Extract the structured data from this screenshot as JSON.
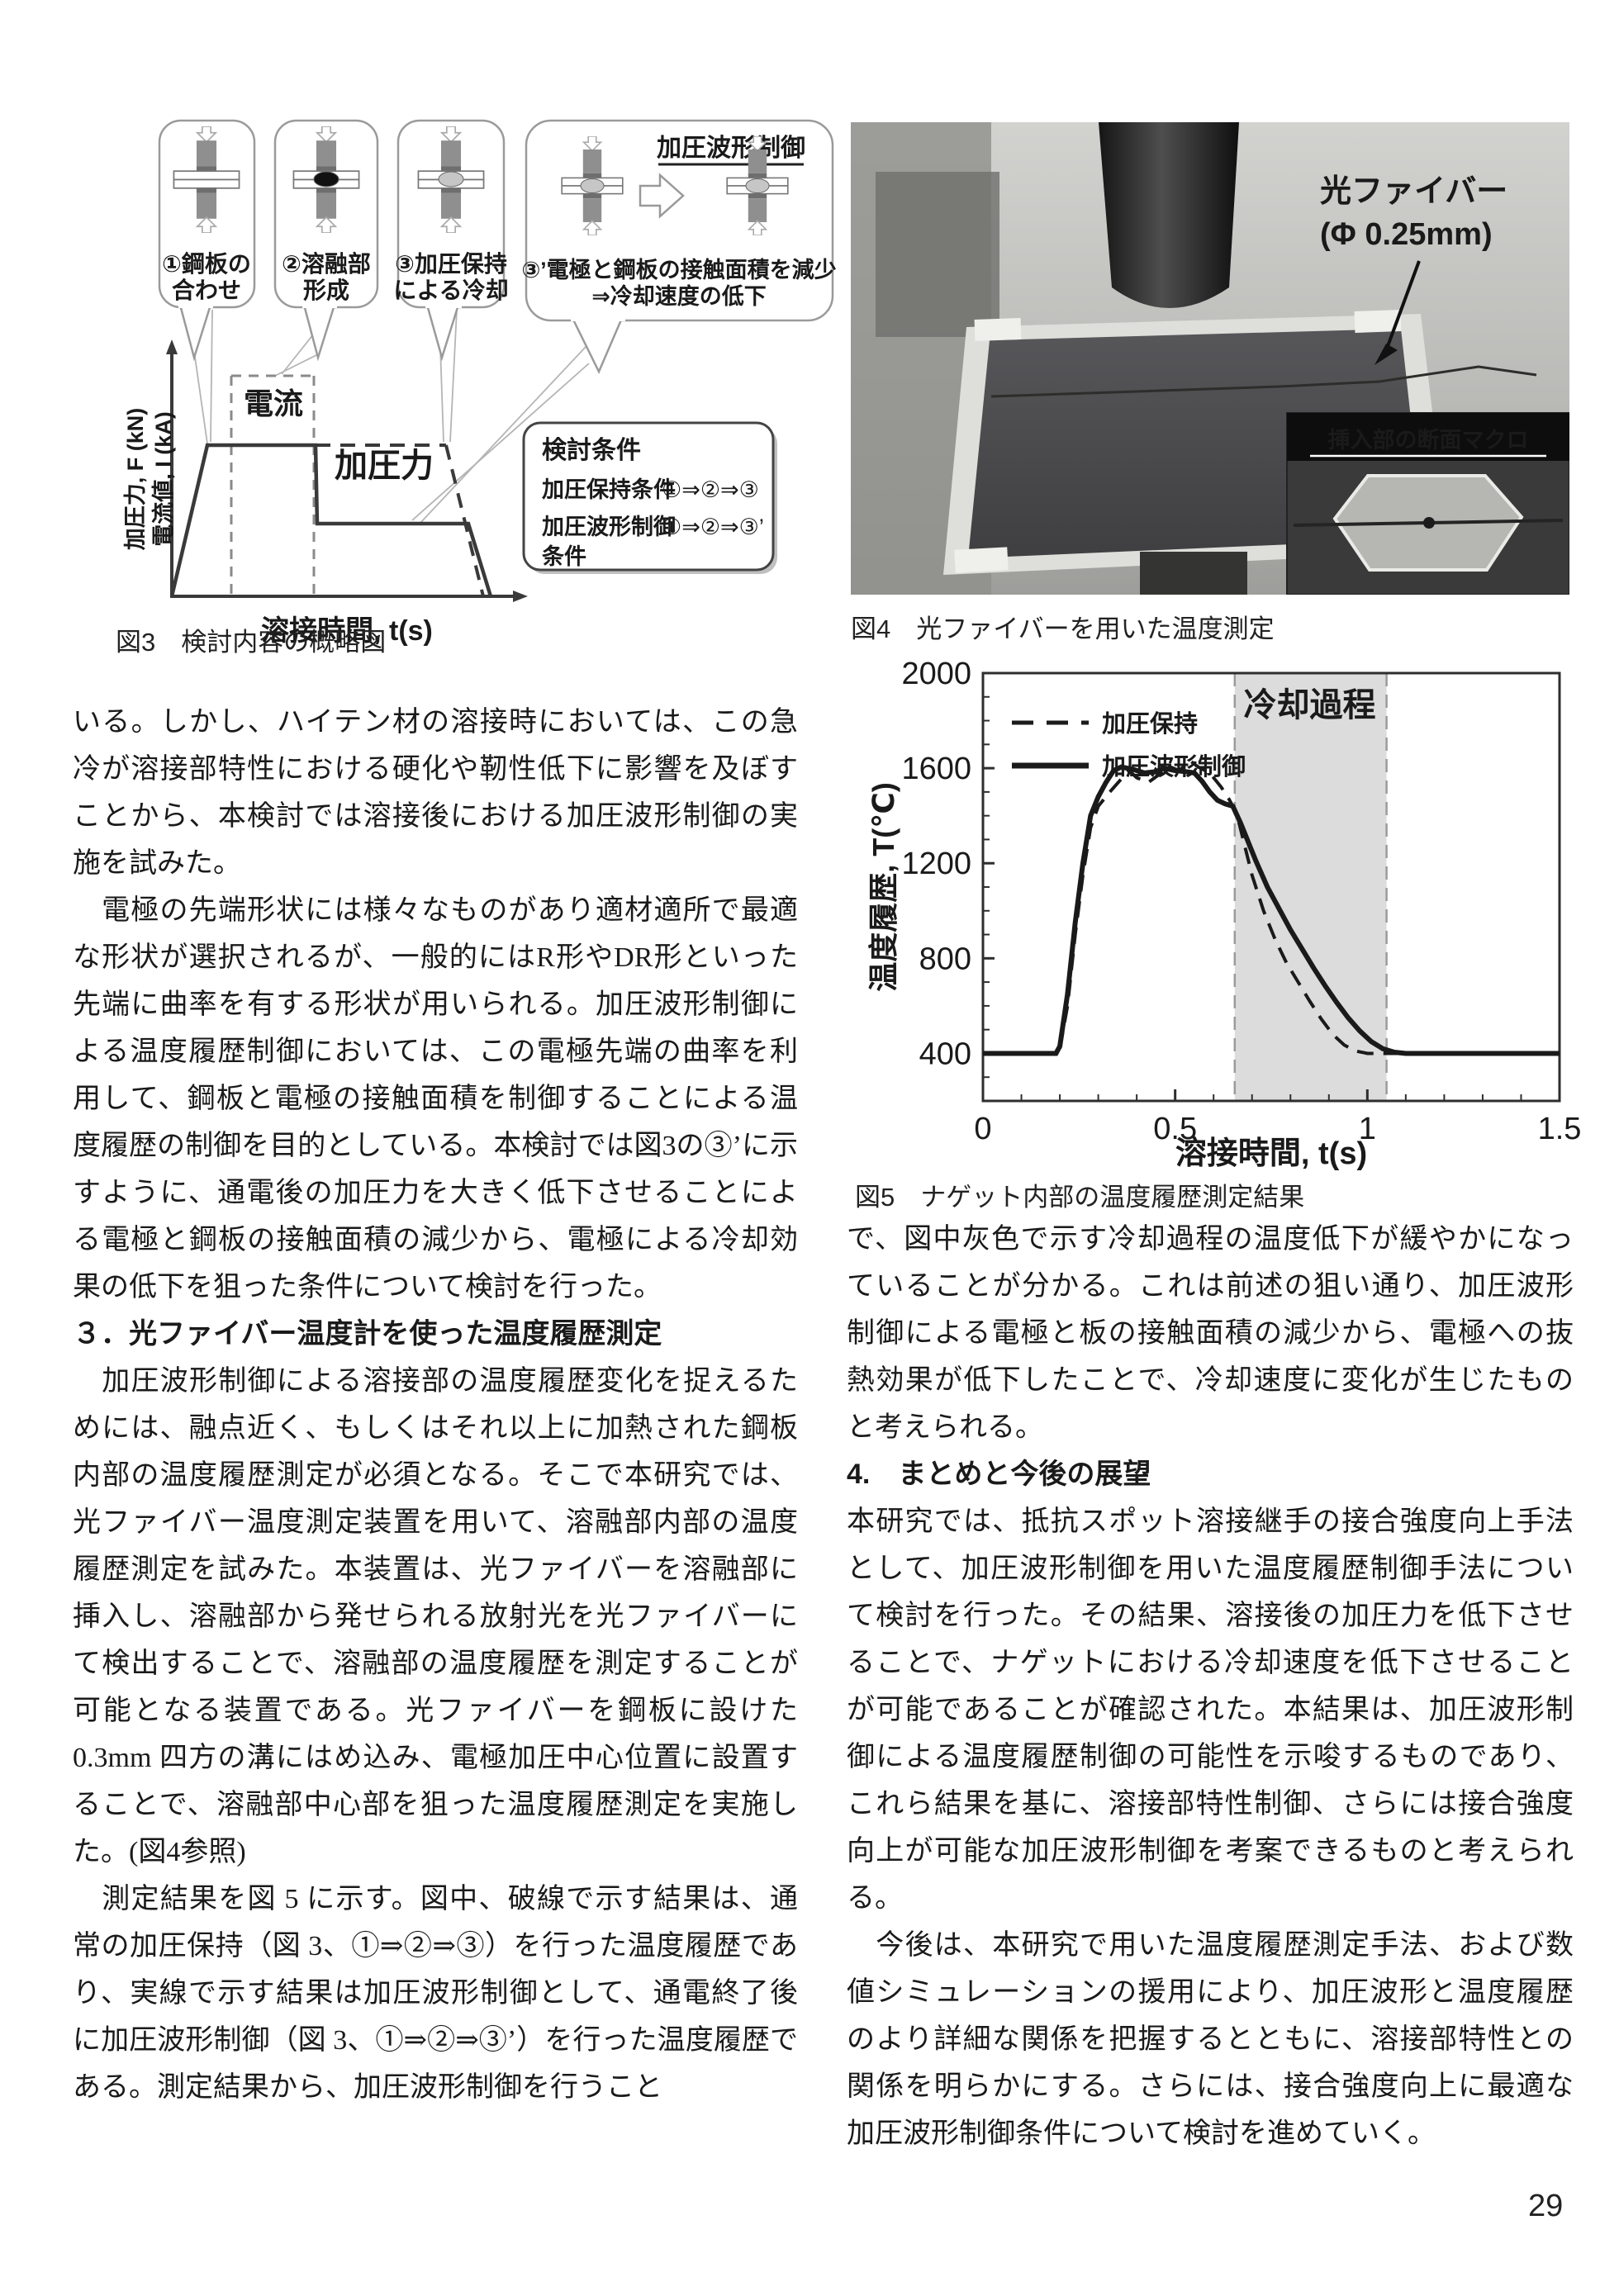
{
  "page": {
    "number": "29"
  },
  "figure3": {
    "caption": "図3　検討内容の概略図",
    "panel4_title": "加圧波形制御",
    "panels": [
      {
        "label1": "①鋼板の",
        "label2": "合わせ",
        "nugget": "none"
      },
      {
        "label1": "②溶融部",
        "label2": "形成",
        "nugget": "black"
      },
      {
        "label1": "③加圧保持",
        "label2": "による冷却",
        "nugget": "gray"
      },
      {
        "label1": "③’電極と鋼板の接触面積を減少",
        "label2": "⇒冷却速度の低下",
        "nugget": "gray"
      }
    ],
    "graph": {
      "ylabel_line1": "加圧力,  F (kN)",
      "ylabel_line2": "電流値,  I (kA)",
      "xlabel": "溶接時間, t(s)",
      "current_label": "電流",
      "force_label": "加圧力"
    },
    "conditions": {
      "title": "検討条件",
      "row1_name": "加圧保持条件",
      "row1_value": "①⇒②⇒③",
      "row2_name": "加圧波形制御",
      "row2_name_cont": "条件",
      "row2_value": "①⇒②⇒③’"
    }
  },
  "figure4": {
    "caption": "図4　光ファイバーを用いた温度測定",
    "fiber_label_line1": "光ファイバー",
    "fiber_label_line2": "(Φ 0.25mm)",
    "inset_title": "挿入部の断面マクロ"
  },
  "figure5": {
    "caption": "図5　ナゲット内部の温度履歴測定結果"
  },
  "chart_data": {
    "type": "line",
    "title": "",
    "xlabel": "溶接時間, t(s)",
    "ylabel": "温度履歴, T(℃)",
    "xlim": [
      0,
      1.5
    ],
    "ylim": [
      200,
      2000
    ],
    "xticks": [
      0,
      0.5,
      1,
      1.5
    ],
    "yticks": [
      400,
      800,
      1200,
      1600,
      2000
    ],
    "grid": false,
    "legend_position": "top-left",
    "annotation": {
      "text": "冷却過程",
      "x": 0.85,
      "y": 1820
    },
    "shaded_region": {
      "x0": 0.655,
      "x1": 1.05,
      "color": "#dcdcdc",
      "meaning": "冷却過程"
    },
    "series": [
      {
        "name": "加圧保持",
        "style": "dashed",
        "color": "#1a1a1a",
        "points": [
          [
            0,
            400
          ],
          [
            0.19,
            400
          ],
          [
            0.2,
            420
          ],
          [
            0.22,
            600
          ],
          [
            0.24,
            900
          ],
          [
            0.26,
            1150
          ],
          [
            0.28,
            1350
          ],
          [
            0.3,
            1440
          ],
          [
            0.33,
            1500
          ],
          [
            0.36,
            1555
          ],
          [
            0.38,
            1590
          ],
          [
            0.4,
            1560
          ],
          [
            0.43,
            1540
          ],
          [
            0.46,
            1575
          ],
          [
            0.48,
            1610
          ],
          [
            0.51,
            1590
          ],
          [
            0.54,
            1630
          ],
          [
            0.56,
            1605
          ],
          [
            0.59,
            1580
          ],
          [
            0.62,
            1520
          ],
          [
            0.64,
            1470
          ],
          [
            0.66,
            1410
          ],
          [
            0.68,
            1280
          ],
          [
            0.7,
            1150
          ],
          [
            0.73,
            1000
          ],
          [
            0.76,
            880
          ],
          [
            0.79,
            780
          ],
          [
            0.82,
            700
          ],
          [
            0.85,
            620
          ],
          [
            0.88,
            545
          ],
          [
            0.91,
            480
          ],
          [
            0.94,
            435
          ],
          [
            0.97,
            410
          ],
          [
            1.0,
            400
          ],
          [
            1.5,
            400
          ]
        ]
      },
      {
        "name": "加圧波形制御",
        "style": "solid",
        "color": "#1a1a1a",
        "points": [
          [
            0,
            400
          ],
          [
            0.19,
            400
          ],
          [
            0.2,
            430
          ],
          [
            0.22,
            650
          ],
          [
            0.24,
            950
          ],
          [
            0.26,
            1200
          ],
          [
            0.28,
            1400
          ],
          [
            0.3,
            1480
          ],
          [
            0.32,
            1540
          ],
          [
            0.34,
            1590
          ],
          [
            0.36,
            1605
          ],
          [
            0.39,
            1595
          ],
          [
            0.42,
            1580
          ],
          [
            0.45,
            1585
          ],
          [
            0.47,
            1600
          ],
          [
            0.5,
            1590
          ],
          [
            0.53,
            1585
          ],
          [
            0.55,
            1580
          ],
          [
            0.57,
            1545
          ],
          [
            0.59,
            1500
          ],
          [
            0.61,
            1465
          ],
          [
            0.63,
            1450
          ],
          [
            0.65,
            1440
          ],
          [
            0.67,
            1370
          ],
          [
            0.69,
            1290
          ],
          [
            0.71,
            1210
          ],
          [
            0.74,
            1100
          ],
          [
            0.77,
            1010
          ],
          [
            0.8,
            920
          ],
          [
            0.83,
            840
          ],
          [
            0.86,
            760
          ],
          [
            0.89,
            685
          ],
          [
            0.92,
            615
          ],
          [
            0.95,
            550
          ],
          [
            0.98,
            495
          ],
          [
            1.01,
            450
          ],
          [
            1.04,
            420
          ],
          [
            1.07,
            405
          ],
          [
            1.1,
            400
          ],
          [
            1.5,
            400
          ]
        ]
      }
    ]
  },
  "left_column": {
    "p1": "いる。しかし、ハイテン材の溶接時においては、この急冷が溶接部特性における硬化や靭性低下に影響を及ぼすことから、本検討では溶接後における加圧波形制御の実施を試みた。",
    "p2": "　電極の先端形状には様々なものがあり適材適所で最適な形状が選択されるが、一般的にはR形やDR形といった先端に曲率を有する形状が用いられる。加圧波形制御による温度履歴制御においては、この電極先端の曲率を利用して、鋼板と電極の接触面積を制御することによる温度履歴の制御を目的としている。本検討では図3の③’に示すように、通電後の加圧力を大きく低下させることによる電極と鋼板の接触面積の減少から、電極による冷却効果の低下を狙った条件について検討を行った。",
    "heading3": "３．光ファイバー温度計を使った温度履歴測定",
    "p3": "　加圧波形制御による溶接部の温度履歴変化を捉えるためには、融点近く、もしくはそれ以上に加熱された鋼板内部の温度履歴測定が必須となる。そこで本研究では、光ファイバー温度測定装置を用いて、溶融部内部の温度履歴測定を試みた。本装置は、光ファイバーを溶融部に挿入し、溶融部から発せられる放射光を光ファイバーにて検出することで、溶融部の温度履歴を測定することが可能となる装置である。光ファイバーを鋼板に設けた0.3mm 四方の溝にはめ込み、電極加圧中心位置に設置することで、溶融部中心部を狙った温度履歴測定を実施した。(図4参照)",
    "p4": "　測定結果を図 5 に示す。図中、破線で示す結果は、通常の加圧保持（図 3、①⇒②⇒③）を行った温度履歴であり、実線で示す結果は加圧波形制御として、通電終了後に加圧波形制御（図 3、①⇒②⇒③’）を行った温度履歴である。測定結果から、加圧波形制御を行うこと"
  },
  "right_column": {
    "p1": "で、図中灰色で示す冷却過程の温度低下が緩やかになっていることが分かる。これは前述の狙い通り、加圧波形制御による電極と板の接触面積の減少から、電極への抜熱効果が低下したことで、冷却速度に変化が生じたものと考えられる。",
    "heading4": "4.　まとめと今後の展望",
    "p2": "本研究では、抵抗スポット溶接継手の接合強度向上手法として、加圧波形制御を用いた温度履歴制御手法について検討を行った。その結果、溶接後の加圧力を低下させることで、ナゲットにおける冷却速度を低下させることが可能であることが確認された。本結果は、加圧波形制御による温度履歴制御の可能性を示唆するものであり、これら結果を基に、溶接部特性制御、さらには接合強度向上が可能な加圧波形制御を考案できるものと考えられる。",
    "p3": "　今後は、本研究で用いた温度履歴測定手法、および数値シミュレーションの援用により、加圧波形と温度履歴のより詳細な関係を把握するとともに、溶接部特性との関係を明らかにする。さらには、接合強度向上に最適な加圧波形制御条件について検討を進めていく。"
  }
}
